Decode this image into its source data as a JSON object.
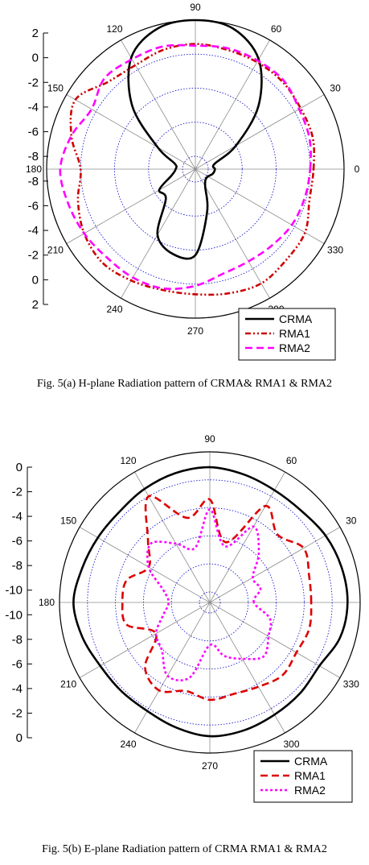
{
  "captions": {
    "a": "Fig. 5(a) H-plane Radiation pattern of CRMA& RMA1 & RMA2",
    "b": "Fig. 5(b) E-plane Radiation pattern of CRMA RMA1 & RMA2"
  },
  "chart_data": [
    {
      "type": "polar",
      "angle_labels": [
        "0",
        "30",
        "60",
        "90",
        "120",
        "150",
        "180",
        "210",
        "240",
        "270",
        "300",
        "330"
      ],
      "radial_axis_labels": [
        "2",
        "0",
        "-2",
        "-4",
        "-6",
        "-8",
        "-8",
        "-6",
        "-4",
        "-2",
        "0",
        "2"
      ],
      "rlim": [
        -8,
        0
      ],
      "rings": [
        -8,
        -6,
        -4,
        -2,
        0
      ],
      "legend": "bottom-right",
      "series": [
        {
          "name": "CRMA",
          "color": "#000000",
          "style": "solid",
          "angles": [
            0,
            15,
            30,
            45,
            60,
            75,
            90,
            105,
            120,
            135,
            150,
            165,
            180,
            195,
            210,
            225,
            240,
            255,
            270,
            285,
            300,
            315,
            330,
            345
          ],
          "values": [
            -7.6,
            -7.6,
            -6.0,
            -3.5,
            -1.3,
            -0.2,
            0.0,
            -0.2,
            -1.2,
            -3.5,
            -6.2,
            -7.5,
            -7.6,
            -7.3,
            -6.3,
            -6.3,
            -4.3,
            -3.6,
            -3.7,
            -6.1,
            -7.6,
            -7.9,
            -7.9,
            -7.7
          ]
        },
        {
          "name": "RMA1",
          "color": "#cc0000",
          "style": "dash-dot",
          "angles": [
            0,
            15,
            30,
            45,
            60,
            75,
            90,
            105,
            120,
            135,
            150,
            165,
            180,
            195,
            210,
            225,
            240,
            255,
            270,
            285,
            300,
            315,
            330,
            345
          ],
          "values": [
            -1.8,
            -1.6,
            -1.6,
            -1.5,
            -1.5,
            -1.5,
            -1.4,
            -1.5,
            -1.7,
            -1.5,
            -0.6,
            -1.2,
            -2.0,
            -1.6,
            -1.2,
            -1.0,
            -1.2,
            -1.4,
            -1.4,
            -1.2,
            -1.0,
            -1.2,
            -1.3,
            -1.8
          ]
        },
        {
          "name": "RMA2",
          "color": "#ff00ff",
          "style": "dash",
          "angles": [
            0,
            15,
            30,
            45,
            60,
            75,
            90,
            105,
            120,
            135,
            150,
            165,
            180,
            195,
            210,
            225,
            240,
            255,
            270,
            285,
            300,
            315,
            330,
            345
          ],
          "values": [
            -2.0,
            -1.8,
            -1.7,
            -1.4,
            -1.4,
            -1.4,
            -1.5,
            -1.3,
            -1.3,
            -1.2,
            -1.7,
            -1.2,
            -0.8,
            -1.0,
            -1.2,
            -1.4,
            -1.4,
            -1.5,
            -1.9,
            -2.4,
            -2.5,
            -2.4,
            -2.2,
            -2.1
          ]
        }
      ]
    },
    {
      "type": "polar",
      "angle_labels": [
        "0",
        "30",
        "60",
        "90",
        "120",
        "150",
        "180",
        "210",
        "240",
        "270",
        "300",
        "330"
      ],
      "radial_axis_labels": [
        "0",
        "-2",
        "-4",
        "-6",
        "-8",
        "-10",
        "-10",
        "-8",
        "-6",
        "-4",
        "-2",
        "0"
      ],
      "rlim": [
        -10,
        0
      ],
      "rings": [
        -10,
        -8,
        -6,
        -4,
        -2,
        0
      ],
      "legend": "bottom-right",
      "series": [
        {
          "name": "CRMA",
          "color": "#000000",
          "style": "solid",
          "angles": [
            0,
            15,
            30,
            45,
            60,
            75,
            90,
            105,
            120,
            135,
            150,
            165,
            180,
            195,
            210,
            225,
            240,
            255,
            270,
            285,
            300,
            315,
            330,
            345
          ],
          "values": [
            -0.9,
            -1.0,
            -1.2,
            -1.5,
            -1.5,
            -1.3,
            -1.1,
            -1.2,
            -1.4,
            -1.6,
            -1.5,
            -1.3,
            -1.0,
            -1.3,
            -1.7,
            -1.8,
            -1.8,
            -1.5,
            -1.2,
            -1.3,
            -1.5,
            -1.6,
            -1.7,
            -1.1
          ]
        },
        {
          "name": "RMA1",
          "color": "#dd0000",
          "style": "dash",
          "angles": [
            0,
            15,
            30,
            45,
            60,
            75,
            90,
            105,
            120,
            135,
            150,
            165,
            180,
            195,
            210,
            225,
            240,
            255,
            270,
            285,
            300,
            315,
            330,
            345
          ],
          "values": [
            -3.5,
            -3.4,
            -3.0,
            -3.9,
            -2.8,
            -6.3,
            -3.4,
            -4.5,
            -2.0,
            -4.5,
            -5.7,
            -4.6,
            -4.5,
            -4.6,
            -6.3,
            -4.2,
            -3.5,
            -4.2,
            -3.8,
            -4.0,
            -3.8,
            -3.4,
            -3.6,
            -3.4
          ]
        },
        {
          "name": "RMA2",
          "color": "#ff00ff",
          "style": "dot",
          "angles": [
            0,
            15,
            30,
            45,
            60,
            75,
            90,
            105,
            120,
            135,
            150,
            165,
            180,
            195,
            210,
            225,
            240,
            255,
            270,
            285,
            300,
            315,
            330,
            345
          ],
          "values": [
            -7.6,
            -7.0,
            -7.2,
            -5.8,
            -4.5,
            -6.6,
            -4.1,
            -6.7,
            -5.9,
            -4.8,
            -5.7,
            -7.3,
            -7.8,
            -7.3,
            -6.3,
            -5.9,
            -4.7,
            -5.2,
            -7.7,
            -6.8,
            -6.1,
            -5.3,
            -5.9,
            -6.3
          ]
        }
      ]
    }
  ]
}
